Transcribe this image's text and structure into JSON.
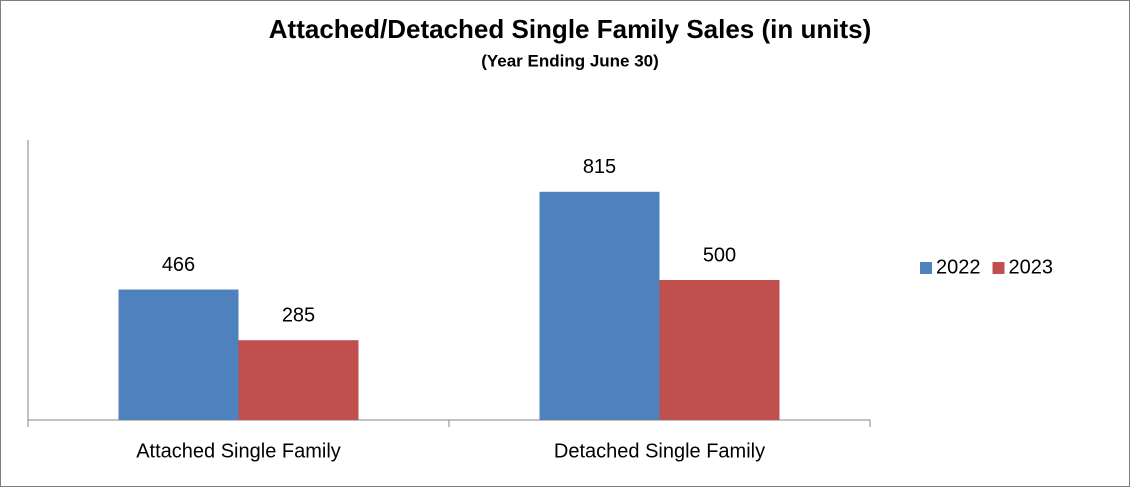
{
  "chart_data": {
    "type": "bar",
    "title": "Attached/Detached Single Family Sales (in units)",
    "subtitle": "(Year Ending June 30)",
    "categories": [
      "Attached Single Family",
      "Detached Single Family"
    ],
    "series": [
      {
        "name": "2022",
        "color": "#4f81bd",
        "values": [
          466,
          815
        ]
      },
      {
        "name": "2023",
        "color": "#c0504d",
        "values": [
          285,
          500
        ]
      }
    ],
    "ylim": [
      0,
      1000
    ],
    "legend": "right"
  }
}
